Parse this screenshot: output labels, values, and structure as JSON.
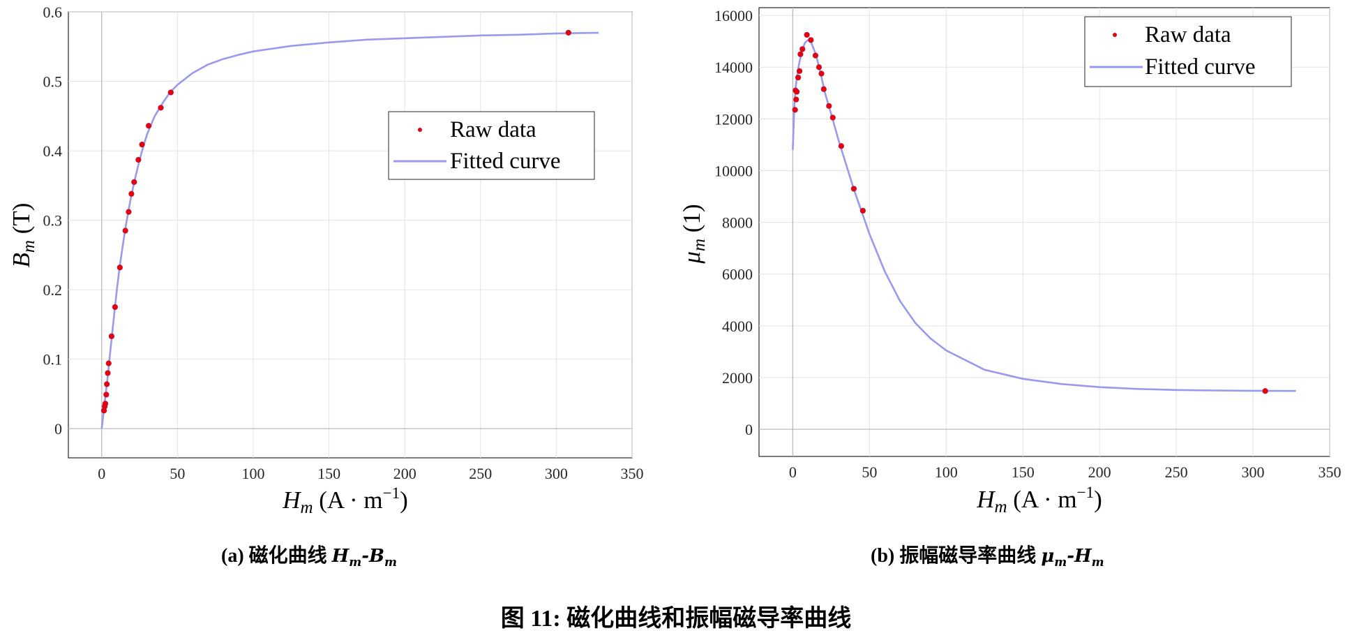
{
  "figure_caption": "图 11: 磁化曲线和振幅磁导率曲线",
  "chart_data": [
    {
      "type": "scatter",
      "panel_label": "(a) 磁化曲线",
      "panel_symbol": "Hm-Bm",
      "xlabel": "Hm (A · m−1)",
      "ylabel": "Bm (T)",
      "xlim": [
        -22,
        350
      ],
      "ylim": [
        -0.042,
        0.6
      ],
      "x_ticks": [
        0,
        50,
        100,
        150,
        200,
        250,
        300,
        350
      ],
      "y_ticks": [
        0,
        0.1,
        0.2,
        0.3,
        0.4,
        0.5,
        0.6
      ],
      "x_tick_labels": [
        "0",
        "50",
        "100",
        "150",
        "200",
        "250",
        "300",
        "350"
      ],
      "y_tick_labels": [
        "0",
        "0.1",
        "0.2",
        "0.3",
        "0.4",
        "0.5",
        "0.6"
      ],
      "grid": true,
      "legend_position": "center-right",
      "legend": [
        "Raw data",
        "Fitted curve"
      ],
      "series": [
        {
          "name": "Raw data",
          "kind": "points",
          "color": "#e8000b",
          "points": [
            [
              1.5,
              0.026
            ],
            [
              2.0,
              0.032
            ],
            [
              2.4,
              0.036
            ],
            [
              3.0,
              0.049
            ],
            [
              3.4,
              0.064
            ],
            [
              4.0,
              0.08
            ],
            [
              4.6,
              0.094
            ],
            [
              6.5,
              0.133
            ],
            [
              8.8,
              0.175
            ],
            [
              12.0,
              0.232
            ],
            [
              15.6,
              0.285
            ],
            [
              17.8,
              0.312
            ],
            [
              19.6,
              0.338
            ],
            [
              21.4,
              0.355
            ],
            [
              24.2,
              0.387
            ],
            [
              26.6,
              0.409
            ],
            [
              31.0,
              0.436
            ],
            [
              39.0,
              0.462
            ],
            [
              45.6,
              0.484
            ],
            [
              308.0,
              0.57
            ]
          ]
        },
        {
          "name": "Fitted curve",
          "kind": "line",
          "color": "#9999ee",
          "points": [
            [
              0,
              0
            ],
            [
              2,
              0.038
            ],
            [
              4,
              0.076
            ],
            [
              6,
              0.118
            ],
            [
              8,
              0.16
            ],
            [
              10,
              0.2
            ],
            [
              12,
              0.235
            ],
            [
              14,
              0.265
            ],
            [
              16,
              0.293
            ],
            [
              18,
              0.318
            ],
            [
              20,
              0.34
            ],
            [
              22,
              0.36
            ],
            [
              24,
              0.378
            ],
            [
              26,
              0.395
            ],
            [
              28,
              0.41
            ],
            [
              30,
              0.424
            ],
            [
              35,
              0.45
            ],
            [
              40,
              0.468
            ],
            [
              45,
              0.484
            ],
            [
              50,
              0.495
            ],
            [
              60,
              0.512
            ],
            [
              70,
              0.524
            ],
            [
              80,
              0.532
            ],
            [
              90,
              0.538
            ],
            [
              100,
              0.543
            ],
            [
              125,
              0.551
            ],
            [
              150,
              0.556
            ],
            [
              175,
              0.56
            ],
            [
              200,
              0.562
            ],
            [
              225,
              0.564
            ],
            [
              250,
              0.566
            ],
            [
              275,
              0.567
            ],
            [
              300,
              0.569
            ],
            [
              328,
              0.57
            ]
          ]
        }
      ]
    },
    {
      "type": "scatter",
      "panel_label": "(b) 振幅磁导率曲线",
      "panel_symbol": "μm-Hm",
      "xlabel": "Hm (A · m−1)",
      "ylabel": "μm (1)",
      "xlim": [
        -22,
        350
      ],
      "ylim": [
        -1050,
        16300
      ],
      "x_ticks": [
        0,
        50,
        100,
        150,
        200,
        250,
        300,
        350
      ],
      "y_ticks": [
        0,
        2000,
        4000,
        6000,
        8000,
        10000,
        12000,
        14000,
        16000
      ],
      "x_tick_labels": [
        "0",
        "50",
        "100",
        "150",
        "200",
        "250",
        "300",
        "350"
      ],
      "y_tick_labels": [
        "0",
        "2000",
        "4000",
        "6000",
        "8000",
        "10000",
        "12000",
        "14000",
        "16000"
      ],
      "grid": true,
      "legend_position": "top-right",
      "legend": [
        "Raw data",
        "Fitted curve"
      ],
      "series": [
        {
          "name": "Raw data",
          "kind": "points",
          "color": "#e8000b",
          "points": [
            [
              1.5,
              12350
            ],
            [
              1.8,
              13100
            ],
            [
              2.2,
              12750
            ],
            [
              2.6,
              13050
            ],
            [
              3.5,
              13600
            ],
            [
              4.4,
              13850
            ],
            [
              5.0,
              14500
            ],
            [
              6.3,
              14700
            ],
            [
              9.2,
              15250
            ],
            [
              11.8,
              15050
            ],
            [
              14.8,
              14450
            ],
            [
              17.1,
              14000
            ],
            [
              18.7,
              13750
            ],
            [
              20.2,
              13150
            ],
            [
              23.6,
              12500
            ],
            [
              26.1,
              12050
            ],
            [
              31.6,
              10950
            ],
            [
              39.8,
              9300
            ],
            [
              45.7,
              8450
            ],
            [
              308.0,
              1480
            ]
          ]
        },
        {
          "name": "Fitted curve",
          "kind": "line",
          "color": "#9999ee",
          "points": [
            [
              0,
              10800
            ],
            [
              1,
              12500
            ],
            [
              2,
              13300
            ],
            [
              4,
              14100
            ],
            [
              6,
              14650
            ],
            [
              8,
              14950
            ],
            [
              10,
              15050
            ],
            [
              12,
              14950
            ],
            [
              15,
              14500
            ],
            [
              18,
              13800
            ],
            [
              21,
              13000
            ],
            [
              25,
              12200
            ],
            [
              30,
              11150
            ],
            [
              35,
              10200
            ],
            [
              40,
              9250
            ],
            [
              45,
              8400
            ],
            [
              50,
              7550
            ],
            [
              60,
              6100
            ],
            [
              70,
              4950
            ],
            [
              80,
              4100
            ],
            [
              90,
              3500
            ],
            [
              100,
              3050
            ],
            [
              125,
              2300
            ],
            [
              150,
              1950
            ],
            [
              175,
              1750
            ],
            [
              200,
              1630
            ],
            [
              225,
              1560
            ],
            [
              250,
              1520
            ],
            [
              275,
              1500
            ],
            [
              300,
              1490
            ],
            [
              328,
              1480
            ]
          ]
        }
      ]
    }
  ]
}
